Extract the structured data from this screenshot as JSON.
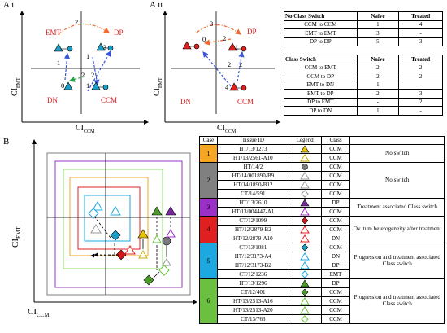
{
  "panel_labels": {
    "ai": "A i",
    "aii": "A ii",
    "b": "B"
  },
  "axes": {
    "y_ai": {
      "main": "CI",
      "sub": "EMT"
    },
    "x_ai": {
      "main": "CI",
      "sub": "CCM"
    },
    "y_aii": {
      "main": "CI",
      "sub": "EMT"
    },
    "x_aii": {
      "main": "CI",
      "sub": "CCM"
    },
    "y_b": {
      "main": "CI",
      "sub": "EMT"
    },
    "x_b": {
      "main": "CI",
      "sub": "CCM"
    }
  },
  "diagram_ai": {
    "quadrants": {
      "emt": "EMT",
      "dp": "DP",
      "dn": "DN",
      "ccm": "CCM"
    },
    "numbers": [
      "2",
      "3",
      "1",
      "1",
      "0",
      "2",
      "2",
      "1"
    ]
  },
  "diagram_aii": {
    "quadrants": {
      "dp": "DP",
      "dn": "DN",
      "ccm": "CCM"
    },
    "numbers": [
      "3",
      "0",
      "2",
      "1",
      "2",
      "2",
      "4"
    ]
  },
  "table_no_switch": {
    "headers": [
      "No Class Switch",
      "Naïve",
      "Treated"
    ],
    "rows": [
      [
        "CCM to CCM",
        "1",
        "4"
      ],
      [
        "EMT to EMT",
        "3",
        "-"
      ],
      [
        "DP to DP",
        "5",
        "3"
      ]
    ]
  },
  "table_switch": {
    "headers": [
      "Class Switch",
      "Naïve",
      "Treated"
    ],
    "rows": [
      [
        "CCM to EMT",
        "2",
        "2"
      ],
      [
        "CCM to DP",
        "2",
        "2"
      ],
      [
        "EMT to DN",
        "1",
        "-"
      ],
      [
        "EMT to DP",
        "2",
        "3"
      ],
      [
        "DP to EMT",
        "-",
        "2"
      ],
      [
        "DP to DN",
        "1",
        "-"
      ]
    ]
  },
  "case_table": {
    "headers": [
      "Case",
      "Tissue ID",
      "Legend",
      "Class"
    ],
    "groups": [
      {
        "case": "1",
        "color": "#f5a623",
        "description": "No switch",
        "rows": [
          {
            "id": "HT/13/1273",
            "shape": "triangle",
            "fill": "#e8c400",
            "cls": "CCM"
          },
          {
            "id": "HT/13/2561-A10",
            "shape": "triangle",
            "fill": "#ffffff",
            "stroke": "#c8a800",
            "cls": "CCM"
          }
        ]
      },
      {
        "case": "2",
        "color": "#808080",
        "description": "No switch",
        "rows": [
          {
            "id": "HT/14/2",
            "shape": "circle",
            "fill": "#7a7a7a",
            "cls": "CCM"
          },
          {
            "id": "HT/14/001890-B9",
            "shape": "triangle",
            "fill": "#ffffff",
            "stroke": "#999999",
            "cls": "CCM"
          },
          {
            "id": "HT/14/1890-B12",
            "shape": "triangle",
            "fill": "#ffffff",
            "stroke": "#999999",
            "cls": "CCM"
          },
          {
            "id": "CT/14/591",
            "shape": "diamond",
            "fill": "#ffffff",
            "stroke": "#999999",
            "cls": "CCM"
          }
        ]
      },
      {
        "case": "3",
        "color": "#9b30c8",
        "description": "Treatment associated Class switch",
        "rows": [
          {
            "id": "HT/13/2610",
            "shape": "triangle",
            "fill": "#7b2aa0",
            "cls": "DP"
          },
          {
            "id": "HT/13/004447-A1",
            "shape": "triangle",
            "fill": "#ffffff",
            "stroke": "#9b30c8",
            "cls": "CCM"
          }
        ]
      },
      {
        "case": "4",
        "color": "#e02020",
        "description": "Ov. tum heterogeneity after treatment",
        "rows": [
          {
            "id": "CT/12/1099",
            "shape": "diamond",
            "fill": "#d01818",
            "cls": "CCM"
          },
          {
            "id": "HT/12/2879-B2",
            "shape": "triangle",
            "fill": "#ffffff",
            "stroke": "#e02020",
            "cls": "CCM"
          },
          {
            "id": "HT/12/2879-A10",
            "shape": "triangle",
            "fill": "#ffffff",
            "stroke": "#e02020",
            "cls": "DN"
          }
        ]
      },
      {
        "case": "5",
        "color": "#1ea8e0",
        "description": "Progression and treatment associated Class switch",
        "rows": [
          {
            "id": "CT/13/1081",
            "shape": "diamond",
            "fill": "#1aa0c8",
            "cls": "CCM"
          },
          {
            "id": "HT/12/3173-A4",
            "shape": "triangle",
            "fill": "#ffffff",
            "stroke": "#1ea8e0",
            "cls": "DN"
          },
          {
            "id": "HT/12/3173-B2",
            "shape": "triangle",
            "fill": "#ffffff",
            "stroke": "#1ea8e0",
            "cls": "DP"
          },
          {
            "id": "CT/12/1236",
            "shape": "diamond",
            "fill": "#ffffff",
            "stroke": "#1ea8e0",
            "cls": "EMT"
          }
        ]
      },
      {
        "case": "6",
        "color": "#6cc040",
        "description": "Progression and treatment associated Class switch",
        "rows": [
          {
            "id": "HT/13/1296",
            "shape": "triangle",
            "fill": "#4c9a2a",
            "cls": "DP"
          },
          {
            "id": "CT/12/401",
            "shape": "diamond",
            "fill": "#4c9a2a",
            "cls": "CCM"
          },
          {
            "id": "HT/13/2513-A16",
            "shape": "triangle",
            "fill": "#ffffff",
            "stroke": "#6cc040",
            "cls": "CCM"
          },
          {
            "id": "HT/13/2513-A20",
            "shape": "triangle",
            "fill": "#ffffff",
            "stroke": "#6cc040",
            "cls": "CCM"
          },
          {
            "id": "CT/13/763",
            "shape": "diamond",
            "fill": "#ffffff",
            "stroke": "#6cc040",
            "cls": "CCM"
          }
        ]
      }
    ]
  },
  "colors": {
    "red_label": "#e02020",
    "orange_arrow": "#f0682a",
    "blue_arrow": "#3a56d8",
    "green_arrow": "#2ea24a",
    "teal_point": "#1a9fc8",
    "red_point": "#e02020"
  }
}
